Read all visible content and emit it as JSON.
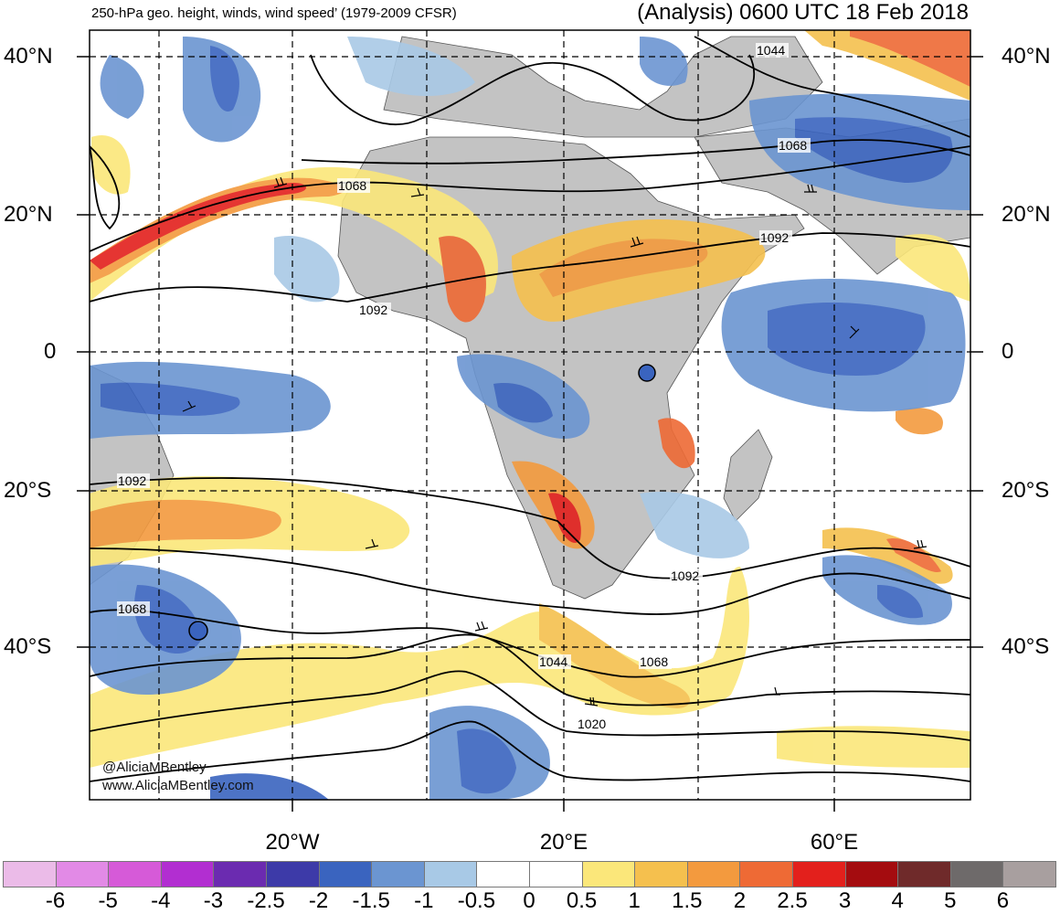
{
  "title_left": "250-hPa geo. height, winds, wind speed’ (1979-2009 CFSR)",
  "title_right": "(Analysis) 0600 UTC 18 Feb 2018",
  "lat_labels": [
    "40°N",
    "20°N",
    "0",
    "20°S",
    "40°S"
  ],
  "lon_labels": [
    "20°W",
    "20°E",
    "60°E"
  ],
  "contour_labels": [
    "1044",
    "1068",
    "1068",
    "1092",
    "1092",
    "1092",
    "1092",
    "1068",
    "1044",
    "1068",
    "1020"
  ],
  "credit": {
    "handle": "@AliciaMBentley",
    "url": "www.AliciaMBentley.com"
  },
  "colorbar": {
    "labels": [
      "-6",
      "-5",
      "-4",
      "-3",
      "-2.5",
      "-2",
      "-1.5",
      "-1",
      "-0.5",
      "0",
      "0.5",
      "1",
      "1.5",
      "2",
      "2.5",
      "3",
      "4",
      "5",
      "6"
    ],
    "colors": [
      "#ebbbe8",
      "#e28ae6",
      "#d65ad8",
      "#b22ed1",
      "#6b2bb0",
      "#3d3aa8",
      "#3a64bf",
      "#6b95d1",
      "#a8c9e6",
      "#ffffff",
      "#ffffff",
      "#fbe77a",
      "#f5c04e",
      "#f39a3e",
      "#ee6a35",
      "#e3201c",
      "#a40c0f",
      "#6f2a2a",
      "#6e6a6a",
      "#a89f9f"
    ]
  },
  "colors": {
    "land": "#c3c3c3",
    "contour": "#000000",
    "grid": "#000000"
  }
}
